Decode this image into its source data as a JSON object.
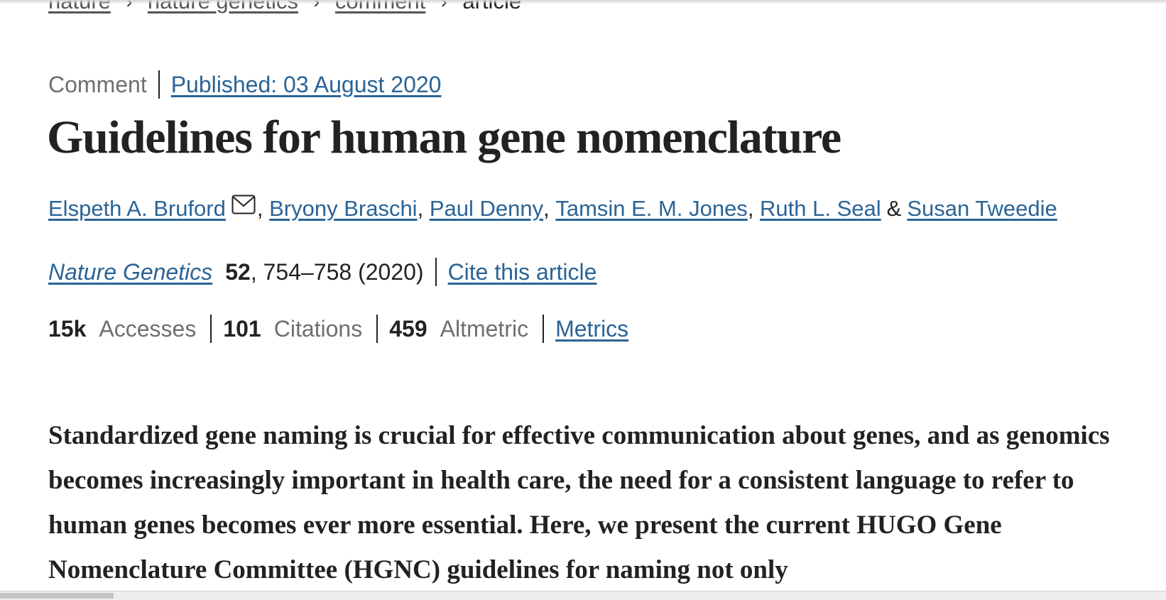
{
  "breadcrumb": {
    "items": [
      "nature",
      "nature genetics",
      "comment"
    ],
    "current": "article",
    "separator": "›"
  },
  "article": {
    "type": "Comment",
    "published": "Published: 03 August 2020",
    "title": "Guidelines for human gene nomenclature"
  },
  "authors": {
    "list": [
      "Elspeth A. Bruford",
      "Bryony Braschi",
      "Paul Denny",
      "Tamsin E. M. Jones",
      "Ruth L. Seal",
      "Susan Tweedie"
    ],
    "ampersand": "&"
  },
  "citation": {
    "journal": "Nature Genetics",
    "volume": "52",
    "pages_year": ", 754–758 (2020)",
    "cite_link": "Cite this article"
  },
  "metrics": {
    "accesses_value": "15k",
    "accesses_label": "Accesses",
    "citations_value": "101",
    "citations_label": "Citations",
    "altmetric_value": "459",
    "altmetric_label": "Altmetric",
    "metrics_link": "Metrics"
  },
  "abstract": {
    "text": "Standardized gene naming is crucial for effective communication about genes, and as genomics becomes increasingly important in health care, the need for a consistent language to refer to human genes becomes ever more essential. Here, we present the current HUGO Gene Nomenclature Committee (HGNC) guidelines for naming not only"
  },
  "colors": {
    "link": "#2a6496",
    "text": "#222222",
    "muted": "#6f6f6f"
  },
  "icons": {
    "author_contact": "mail-icon"
  }
}
